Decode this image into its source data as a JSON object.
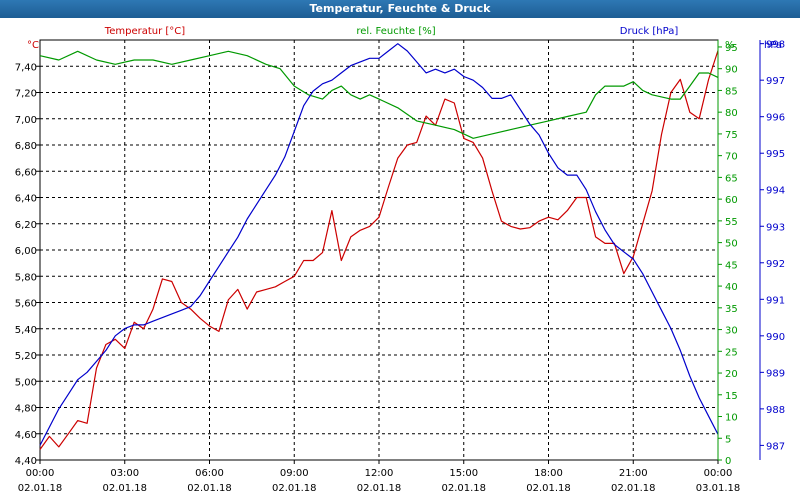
{
  "window": {
    "title": "Temperatur, Feuchte & Druck"
  },
  "colors": {
    "temperature": "#cc0000",
    "humidity": "#009900",
    "pressure": "#0000cc",
    "text": "#000000"
  },
  "chart_data": {
    "type": "line",
    "title": "Temperatur, Feuchte & Druck",
    "grid": true,
    "xlim": [
      "02.01.18 00:00",
      "03.01.18 00:00"
    ],
    "x_ticks": [
      {
        "time": "00:00",
        "date": "02.01.18"
      },
      {
        "time": "03:00",
        "date": "02.01.18"
      },
      {
        "time": "06:00",
        "date": "02.01.18"
      },
      {
        "time": "09:00",
        "date": "02.01.18"
      },
      {
        "time": "12:00",
        "date": "02.01.18"
      },
      {
        "time": "15:00",
        "date": "02.01.18"
      },
      {
        "time": "18:00",
        "date": "02.01.18"
      },
      {
        "time": "21:00",
        "date": "02.01.18"
      },
      {
        "time": "00:00",
        "date": "03.01.18"
      }
    ],
    "axes": {
      "temperature": {
        "label": "Temperatur [°C]",
        "unit": "°C",
        "side": "left",
        "range": [
          4.4,
          7.6
        ],
        "ticks": [
          "4,40",
          "4,60",
          "4,80",
          "5,00",
          "5,20",
          "5,40",
          "5,60",
          "5,80",
          "6,00",
          "6,20",
          "6,40",
          "6,60",
          "6,80",
          "7,00",
          "7,20",
          "7,40"
        ]
      },
      "humidity": {
        "label": "rel. Feuchte [%]",
        "unit": "%",
        "side": "right",
        "range": [
          0,
          96.6
        ],
        "ticks": [
          "0",
          "5",
          "10",
          "15",
          "20",
          "25",
          "30",
          "35",
          "40",
          "45",
          "50",
          "55",
          "60",
          "65",
          "70",
          "75",
          "80",
          "85",
          "90",
          "95"
        ]
      },
      "pressure": {
        "label": "Druck [hPa]",
        "unit": "hPa",
        "side": "right",
        "range": [
          986.6,
          998.1
        ],
        "ticks": [
          "987",
          "988",
          "989",
          "990",
          "991",
          "992",
          "993",
          "994",
          "995",
          "996",
          "997",
          "998"
        ]
      }
    },
    "series": [
      {
        "name": "Temperatur [°C]",
        "axis": "temperature",
        "color": "#cc0000",
        "points": [
          {
            "x": "00:00",
            "y": 4.48
          },
          {
            "x": "00:20",
            "y": 4.58
          },
          {
            "x": "00:40",
            "y": 4.5
          },
          {
            "x": "01:00",
            "y": 4.6
          },
          {
            "x": "01:20",
            "y": 4.7
          },
          {
            "x": "01:40",
            "y": 4.68
          },
          {
            "x": "02:00",
            "y": 5.1
          },
          {
            "x": "02:20",
            "y": 5.28
          },
          {
            "x": "02:40",
            "y": 5.32
          },
          {
            "x": "03:00",
            "y": 5.25
          },
          {
            "x": "03:20",
            "y": 5.45
          },
          {
            "x": "03:40",
            "y": 5.4
          },
          {
            "x": "04:00",
            "y": 5.55
          },
          {
            "x": "04:20",
            "y": 5.78
          },
          {
            "x": "04:40",
            "y": 5.76
          },
          {
            "x": "05:00",
            "y": 5.6
          },
          {
            "x": "05:20",
            "y": 5.55
          },
          {
            "x": "05:40",
            "y": 5.48
          },
          {
            "x": "06:00",
            "y": 5.42
          },
          {
            "x": "06:20",
            "y": 5.38
          },
          {
            "x": "06:40",
            "y": 5.62
          },
          {
            "x": "07:00",
            "y": 5.7
          },
          {
            "x": "07:20",
            "y": 5.55
          },
          {
            "x": "07:40",
            "y": 5.68
          },
          {
            "x": "08:00",
            "y": 5.7
          },
          {
            "x": "08:20",
            "y": 5.72
          },
          {
            "x": "08:40",
            "y": 5.76
          },
          {
            "x": "09:00",
            "y": 5.8
          },
          {
            "x": "09:20",
            "y": 5.92
          },
          {
            "x": "09:40",
            "y": 5.92
          },
          {
            "x": "10:00",
            "y": 5.98
          },
          {
            "x": "10:20",
            "y": 6.3
          },
          {
            "x": "10:40",
            "y": 5.92
          },
          {
            "x": "11:00",
            "y": 6.1
          },
          {
            "x": "11:20",
            "y": 6.15
          },
          {
            "x": "11:40",
            "y": 6.18
          },
          {
            "x": "12:00",
            "y": 6.25
          },
          {
            "x": "12:20",
            "y": 6.48
          },
          {
            "x": "12:40",
            "y": 6.7
          },
          {
            "x": "13:00",
            "y": 6.8
          },
          {
            "x": "13:20",
            "y": 6.82
          },
          {
            "x": "13:40",
            "y": 7.02
          },
          {
            "x": "14:00",
            "y": 6.95
          },
          {
            "x": "14:20",
            "y": 7.15
          },
          {
            "x": "14:40",
            "y": 7.12
          },
          {
            "x": "15:00",
            "y": 6.85
          },
          {
            "x": "15:20",
            "y": 6.82
          },
          {
            "x": "15:40",
            "y": 6.7
          },
          {
            "x": "16:00",
            "y": 6.45
          },
          {
            "x": "16:20",
            "y": 6.22
          },
          {
            "x": "16:40",
            "y": 6.18
          },
          {
            "x": "17:00",
            "y": 6.16
          },
          {
            "x": "17:20",
            "y": 6.17
          },
          {
            "x": "17:40",
            "y": 6.22
          },
          {
            "x": "18:00",
            "y": 6.25
          },
          {
            "x": "18:20",
            "y": 6.23
          },
          {
            "x": "18:40",
            "y": 6.3
          },
          {
            "x": "19:00",
            "y": 6.4
          },
          {
            "x": "19:20",
            "y": 6.4
          },
          {
            "x": "19:40",
            "y": 6.1
          },
          {
            "x": "20:00",
            "y": 6.05
          },
          {
            "x": "20:20",
            "y": 6.05
          },
          {
            "x": "20:40",
            "y": 5.82
          },
          {
            "x": "21:00",
            "y": 5.95
          },
          {
            "x": "21:20",
            "y": 6.2
          },
          {
            "x": "21:40",
            "y": 6.45
          },
          {
            "x": "22:00",
            "y": 6.88
          },
          {
            "x": "22:20",
            "y": 7.2
          },
          {
            "x": "22:40",
            "y": 7.3
          },
          {
            "x": "23:00",
            "y": 7.05
          },
          {
            "x": "23:20",
            "y": 7.0
          },
          {
            "x": "23:40",
            "y": 7.3
          },
          {
            "x": "24:00",
            "y": 7.52
          }
        ]
      },
      {
        "name": "rel. Feuchte [%]",
        "axis": "humidity",
        "color": "#009900",
        "points": [
          {
            "x": "00:00",
            "y": 93
          },
          {
            "x": "00:40",
            "y": 92
          },
          {
            "x": "01:20",
            "y": 94
          },
          {
            "x": "02:00",
            "y": 92
          },
          {
            "x": "02:40",
            "y": 91
          },
          {
            "x": "03:20",
            "y": 92
          },
          {
            "x": "04:00",
            "y": 92
          },
          {
            "x": "04:40",
            "y": 91
          },
          {
            "x": "05:20",
            "y": 92
          },
          {
            "x": "06:00",
            "y": 93
          },
          {
            "x": "06:40",
            "y": 94
          },
          {
            "x": "07:20",
            "y": 93
          },
          {
            "x": "08:00",
            "y": 91
          },
          {
            "x": "08:30",
            "y": 90
          },
          {
            "x": "09:00",
            "y": 86
          },
          {
            "x": "09:30",
            "y": 84
          },
          {
            "x": "10:00",
            "y": 83
          },
          {
            "x": "10:20",
            "y": 85
          },
          {
            "x": "10:40",
            "y": 86
          },
          {
            "x": "11:00",
            "y": 84
          },
          {
            "x": "11:20",
            "y": 83
          },
          {
            "x": "11:40",
            "y": 84
          },
          {
            "x": "12:00",
            "y": 83
          },
          {
            "x": "12:40",
            "y": 81
          },
          {
            "x": "13:20",
            "y": 78
          },
          {
            "x": "14:00",
            "y": 77
          },
          {
            "x": "14:40",
            "y": 76
          },
          {
            "x": "15:20",
            "y": 74
          },
          {
            "x": "16:00",
            "y": 75
          },
          {
            "x": "16:40",
            "y": 76
          },
          {
            "x": "17:20",
            "y": 77
          },
          {
            "x": "18:00",
            "y": 78
          },
          {
            "x": "18:40",
            "y": 79
          },
          {
            "x": "19:20",
            "y": 80
          },
          {
            "x": "19:40",
            "y": 84
          },
          {
            "x": "20:00",
            "y": 86
          },
          {
            "x": "20:40",
            "y": 86
          },
          {
            "x": "21:00",
            "y": 87
          },
          {
            "x": "21:20",
            "y": 85
          },
          {
            "x": "21:40",
            "y": 84
          },
          {
            "x": "22:20",
            "y": 83
          },
          {
            "x": "22:40",
            "y": 83
          },
          {
            "x": "23:00",
            "y": 86
          },
          {
            "x": "23:20",
            "y": 89
          },
          {
            "x": "23:40",
            "y": 89
          },
          {
            "x": "24:00",
            "y": 88
          }
        ]
      },
      {
        "name": "Druck [hPa]",
        "axis": "pressure",
        "color": "#0000cc",
        "points": [
          {
            "x": "00:00",
            "y": 987.0
          },
          {
            "x": "00:20",
            "y": 987.5
          },
          {
            "x": "00:40",
            "y": 988.0
          },
          {
            "x": "01:00",
            "y": 988.4
          },
          {
            "x": "01:20",
            "y": 988.8
          },
          {
            "x": "01:40",
            "y": 989.0
          },
          {
            "x": "02:00",
            "y": 989.3
          },
          {
            "x": "02:20",
            "y": 989.6
          },
          {
            "x": "02:40",
            "y": 990.0
          },
          {
            "x": "03:00",
            "y": 990.2
          },
          {
            "x": "03:20",
            "y": 990.3
          },
          {
            "x": "03:40",
            "y": 990.3
          },
          {
            "x": "04:00",
            "y": 990.4
          },
          {
            "x": "04:20",
            "y": 990.5
          },
          {
            "x": "04:40",
            "y": 990.6
          },
          {
            "x": "05:00",
            "y": 990.7
          },
          {
            "x": "05:20",
            "y": 990.8
          },
          {
            "x": "05:40",
            "y": 991.1
          },
          {
            "x": "06:00",
            "y": 991.5
          },
          {
            "x": "06:20",
            "y": 991.9
          },
          {
            "x": "06:40",
            "y": 992.3
          },
          {
            "x": "07:00",
            "y": 992.7
          },
          {
            "x": "07:20",
            "y": 993.2
          },
          {
            "x": "07:40",
            "y": 993.6
          },
          {
            "x": "08:00",
            "y": 994.0
          },
          {
            "x": "08:20",
            "y": 994.4
          },
          {
            "x": "08:40",
            "y": 994.9
          },
          {
            "x": "09:00",
            "y": 995.6
          },
          {
            "x": "09:20",
            "y": 996.3
          },
          {
            "x": "09:40",
            "y": 996.7
          },
          {
            "x": "10:00",
            "y": 996.9
          },
          {
            "x": "10:20",
            "y": 997.0
          },
          {
            "x": "10:40",
            "y": 997.2
          },
          {
            "x": "11:00",
            "y": 997.4
          },
          {
            "x": "11:20",
            "y": 997.5
          },
          {
            "x": "11:40",
            "y": 997.6
          },
          {
            "x": "12:00",
            "y": 997.6
          },
          {
            "x": "12:20",
            "y": 997.8
          },
          {
            "x": "12:40",
            "y": 998.0
          },
          {
            "x": "13:00",
            "y": 997.8
          },
          {
            "x": "13:20",
            "y": 997.5
          },
          {
            "x": "13:40",
            "y": 997.2
          },
          {
            "x": "14:00",
            "y": 997.3
          },
          {
            "x": "14:20",
            "y": 997.2
          },
          {
            "x": "14:40",
            "y": 997.3
          },
          {
            "x": "15:00",
            "y": 997.1
          },
          {
            "x": "15:20",
            "y": 997.0
          },
          {
            "x": "15:40",
            "y": 996.8
          },
          {
            "x": "16:00",
            "y": 996.5
          },
          {
            "x": "16:20",
            "y": 996.5
          },
          {
            "x": "16:40",
            "y": 996.6
          },
          {
            "x": "17:00",
            "y": 996.2
          },
          {
            "x": "17:20",
            "y": 995.8
          },
          {
            "x": "17:40",
            "y": 995.5
          },
          {
            "x": "18:00",
            "y": 995.0
          },
          {
            "x": "18:20",
            "y": 994.6
          },
          {
            "x": "18:40",
            "y": 994.4
          },
          {
            "x": "19:00",
            "y": 994.4
          },
          {
            "x": "19:20",
            "y": 994.0
          },
          {
            "x": "19:40",
            "y": 993.4
          },
          {
            "x": "20:00",
            "y": 992.9
          },
          {
            "x": "20:20",
            "y": 992.5
          },
          {
            "x": "20:40",
            "y": 992.3
          },
          {
            "x": "21:00",
            "y": 992.1
          },
          {
            "x": "21:20",
            "y": 991.7
          },
          {
            "x": "21:40",
            "y": 991.2
          },
          {
            "x": "22:00",
            "y": 990.7
          },
          {
            "x": "22:20",
            "y": 990.2
          },
          {
            "x": "22:40",
            "y": 989.6
          },
          {
            "x": "23:00",
            "y": 988.9
          },
          {
            "x": "23:20",
            "y": 988.3
          },
          {
            "x": "23:40",
            "y": 987.8
          },
          {
            "x": "24:00",
            "y": 987.3
          }
        ]
      }
    ]
  }
}
